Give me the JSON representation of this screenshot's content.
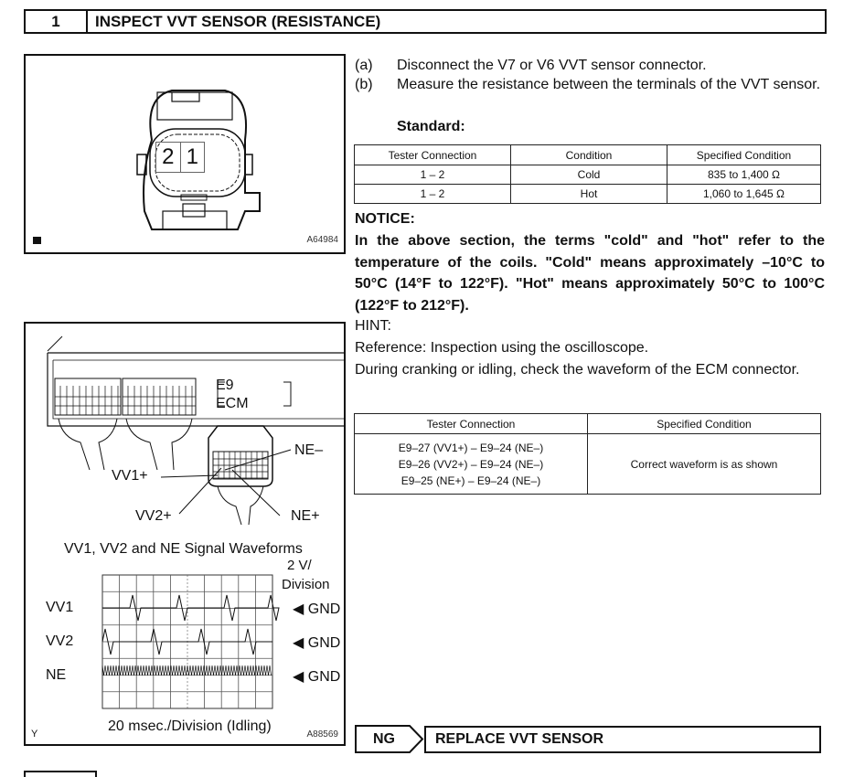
{
  "header": {
    "number": "1",
    "title": "INSPECT VVT SENSOR (RESISTANCE)"
  },
  "figure1": {
    "pins": [
      "2",
      "1"
    ],
    "code": "A64984"
  },
  "figure2": {
    "connector_label_1": "E9",
    "connector_label_2": "ECM",
    "terminals": {
      "vv1p": "VV1+",
      "vv2p": "VV2+",
      "nem": "NE–",
      "nep": "NE+"
    },
    "waveform_title": "VV1, VV2 and NE Signal Waveforms",
    "vdiv_1": "2 V/",
    "vdiv_2": "Division",
    "channels": [
      "VV1",
      "VV2",
      "NE"
    ],
    "gnd": "GND",
    "time_label": "20 msec./Division (Idling)",
    "corner": "Y",
    "code": "A88569"
  },
  "steps": [
    {
      "label": "(a)",
      "text": "Disconnect the V7 or V6 VVT sensor connector."
    },
    {
      "label": "(b)",
      "text": "Measure the resistance between the terminals of the VVT sensor."
    }
  ],
  "standard_label": "Standard:",
  "table1": {
    "headers": [
      "Tester Connection",
      "Condition",
      "Specified Condition"
    ],
    "rows": [
      [
        "1 – 2",
        "Cold",
        "835 to 1,400 Ω"
      ],
      [
        "1 – 2",
        "Hot",
        "1,060 to 1,645 Ω"
      ]
    ]
  },
  "notice": {
    "title": "NOTICE:",
    "text": "In the above section, the terms \"cold\" and \"hot\" refer to the temperature of the coils. \"Cold\" means approximately –10°C to 50°C (14°F to 122°F). \"Hot\" means approximately 50°C to 100°C (122°F to 212°F)."
  },
  "hint": {
    "title": "HINT:",
    "line1": "Reference: Inspection using the oscilloscope.",
    "line2": "During cranking or idling, check the waveform of the ECM connector."
  },
  "table2": {
    "headers": [
      "Tester Connection",
      "Specified Condition"
    ],
    "connections": [
      "E9–27 (VV1+) – E9–24 (NE–)",
      "E9–26 (VV2+) – E9–24 (NE–)",
      "E9–25 (NE+) – E9–24 (NE–)"
    ],
    "condition": "Correct waveform is as shown"
  },
  "result": {
    "ng": "NG",
    "action": "REPLACE VVT SENSOR"
  }
}
